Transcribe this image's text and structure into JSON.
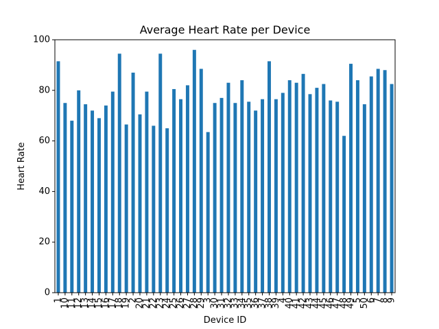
{
  "chart_data": {
    "type": "bar",
    "title": "Average Heart Rate per Device",
    "xlabel": "Device ID",
    "ylabel": "Heart Rate",
    "ylim": [
      0,
      100
    ],
    "yticks": [
      0,
      20,
      40,
      60,
      80,
      100
    ],
    "grid": false,
    "legend": "none",
    "color": "#1f77b4",
    "categories": [
      "1",
      "10",
      "11",
      "12",
      "13",
      "14",
      "15",
      "16",
      "17",
      "18",
      "19",
      "2",
      "20",
      "21",
      "22",
      "23",
      "24",
      "25",
      "26",
      "27",
      "28",
      "29",
      "3",
      "30",
      "31",
      "32",
      "33",
      "34",
      "35",
      "36",
      "37",
      "38",
      "39",
      "4",
      "40",
      "41",
      "42",
      "43",
      "44",
      "45",
      "46",
      "47",
      "48",
      "49",
      "5",
      "50",
      "6",
      "7",
      "8",
      "9"
    ],
    "values": [
      91.5,
      75,
      68,
      80,
      74.5,
      72,
      69,
      74,
      79.5,
      94.5,
      66.5,
      87,
      70.5,
      79.5,
      66,
      94.5,
      65,
      80.5,
      76.5,
      82,
      96,
      88.5,
      63.5,
      75,
      77,
      83,
      75,
      84,
      75.5,
      72,
      76.5,
      91.5,
      76.5,
      79,
      84,
      83,
      86.5,
      78.5,
      81,
      82.5,
      76,
      75.5,
      62,
      90.5,
      84,
      74.5,
      85.5,
      88.5,
      88,
      82.5
    ]
  }
}
